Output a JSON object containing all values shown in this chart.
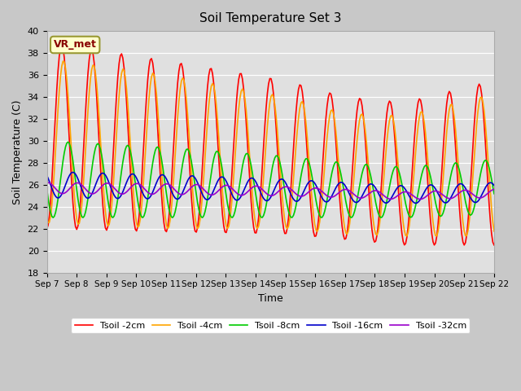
{
  "title": "Soil Temperature Set 3",
  "xlabel": "Time",
  "ylabel": "Soil Temperature (C)",
  "ylim": [
    18,
    40
  ],
  "yticks": [
    18,
    20,
    22,
    24,
    26,
    28,
    30,
    32,
    34,
    36,
    38,
    40
  ],
  "annotation": "VR_met",
  "bg_color": "#e0e0e0",
  "fig_color": "#c8c8c8",
  "grid_color": "white",
  "colors": {
    "2cm": "#ff0000",
    "4cm": "#ffa500",
    "8cm": "#00cc00",
    "16cm": "#0000cc",
    "32cm": "#9900cc"
  },
  "legend_labels": [
    "Tsoil -2cm",
    "Tsoil -4cm",
    "Tsoil -8cm",
    "Tsoil -16cm",
    "Tsoil -32cm"
  ],
  "x_day_labels": [
    "Sep 7",
    "Sep 8",
    "Sep 9",
    "Sep 10",
    "Sep 11",
    "Sep 12",
    "Sep 13",
    "Sep 14",
    "Sep 15",
    "Sep 16",
    "Sep 17",
    "Sep 18",
    "Sep 19",
    "Sep 20",
    "Sep 21",
    "Sep 22"
  ],
  "num_points": 360
}
